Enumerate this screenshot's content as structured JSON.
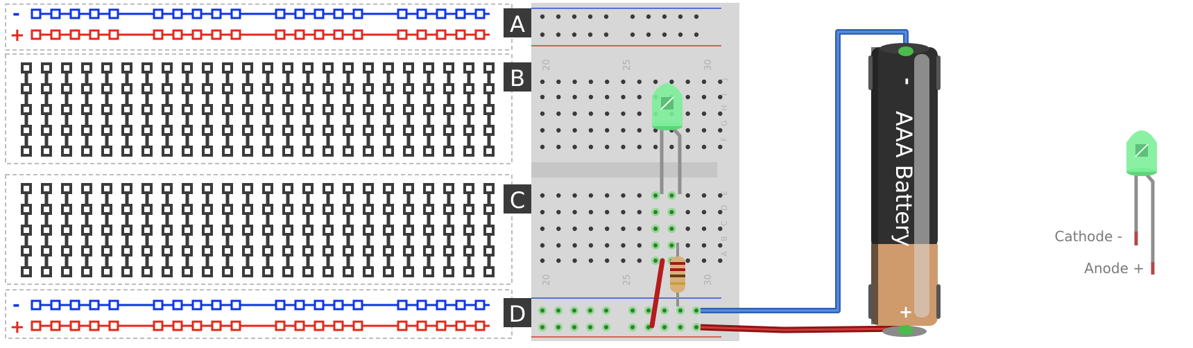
{
  "sections": {
    "a": "A",
    "b": "B",
    "c": "C",
    "d": "D"
  },
  "rails": {
    "minus_symbol": "-",
    "plus_symbol": "+",
    "blue": "#1034e6",
    "red": "#e3281b"
  },
  "breadboard": {
    "column_numbers": [
      "20",
      "25",
      "30"
    ],
    "row_letters_top": [
      "J",
      "I",
      "H",
      "G",
      "F"
    ],
    "row_letters_bottom": [
      "E",
      "D",
      "C",
      "B",
      "A"
    ]
  },
  "battery": {
    "label": "AAA Battery",
    "minus_symbol": "-",
    "plus_symbol": "+"
  },
  "legend": {
    "cathode_label": "Cathode -",
    "anode_label": "Anode +"
  },
  "colors": {
    "wire_blue": "#3a73c6",
    "wire_red": "#b51c1c",
    "led_green": "#7df09a",
    "tie_point_green": "#4cbb4c",
    "battery_body": "#2f2f2f",
    "battery_copper": "#cf9a6c"
  }
}
